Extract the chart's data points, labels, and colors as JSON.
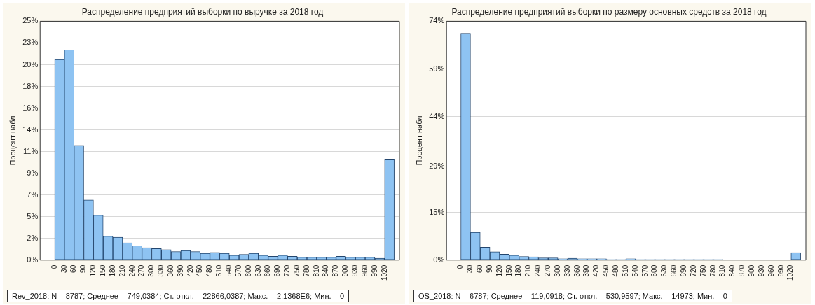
{
  "chart_data": [
    {
      "type": "histogram",
      "title": "Распределение предприятий выборки по выручке за 2018 год",
      "ylabel": "Процент набл",
      "color": "#8ec3f2",
      "bins": [
        0,
        30,
        60,
        90,
        120,
        150,
        180,
        210,
        240,
        270,
        300,
        330,
        360,
        390,
        420,
        450,
        480,
        510,
        540,
        570,
        600,
        630,
        660,
        690,
        720,
        750,
        780,
        810,
        840,
        870,
        900,
        930,
        960,
        990,
        1020,
        1050
      ],
      "values": [
        21.0,
        22.0,
        12.0,
        6.3,
        4.7,
        2.5,
        2.4,
        1.8,
        1.5,
        1.3,
        1.2,
        1.1,
        0.9,
        1.0,
        0.9,
        0.7,
        0.8,
        0.7,
        0.5,
        0.6,
        0.7,
        0.5,
        0.4,
        0.5,
        0.4,
        0.3,
        0.3,
        0.3,
        0.3,
        0.4,
        0.3,
        0.3,
        0.3,
        0.2,
        10.5
      ],
      "xlim": [
        -45,
        1066
      ],
      "xticks": [
        0,
        30,
        60,
        90,
        120,
        150,
        180,
        210,
        240,
        270,
        300,
        330,
        360,
        390,
        420,
        450,
        480,
        510,
        540,
        570,
        600,
        630,
        660,
        690,
        720,
        750,
        780,
        810,
        840,
        870,
        900,
        930,
        960,
        990,
        1020
      ],
      "ylim": [
        0,
        25
      ],
      "yticks": [
        {
          "value": 0,
          "label": "0%"
        },
        {
          "value": 2.27,
          "label": "2%"
        },
        {
          "value": 4.55,
          "label": "5%"
        },
        {
          "value": 6.82,
          "label": "7%"
        },
        {
          "value": 9.09,
          "label": "9%"
        },
        {
          "value": 11.36,
          "label": "11%"
        },
        {
          "value": 13.64,
          "label": "14%"
        },
        {
          "value": 15.91,
          "label": "16%"
        },
        {
          "value": 18.18,
          "label": "18%"
        },
        {
          "value": 20.45,
          "label": "20%"
        },
        {
          "value": 22.73,
          "label": "23%"
        },
        {
          "value": 25,
          "label": "25%"
        }
      ],
      "grid": "y",
      "annotations": [
        "Rev_2018:   N = 8787; Среднее = 749,0384; Ст. откл. = 22866,0387; Макс. = 2,1368E6; Мин. = 0"
      ]
    },
    {
      "type": "histogram",
      "title": "Распределение предприятий выборки по размеру основных средств за 2018 год",
      "ylabel": "Процент набл",
      "color": "#8ec3f2",
      "bins": [
        0,
        30,
        60,
        90,
        120,
        150,
        180,
        210,
        240,
        270,
        300,
        330,
        360,
        390,
        420,
        450,
        480,
        510,
        540,
        570,
        600,
        630,
        660,
        690,
        720,
        750,
        780,
        810,
        840,
        870,
        900,
        930,
        960,
        990,
        1020,
        1050
      ],
      "values": [
        70.3,
        8.6,
        4.0,
        2.6,
        1.8,
        1.5,
        1.1,
        1.0,
        0.7,
        0.7,
        0.4,
        0.6,
        0.4,
        0.4,
        0.4,
        0.2,
        0.2,
        0.4,
        0.2,
        0.2,
        0.2,
        0.2,
        0.2,
        0.2,
        0.2,
        0.2,
        0.2,
        0,
        0,
        0,
        0,
        0,
        0,
        0,
        2.3
      ],
      "xlim": [
        -44,
        1066
      ],
      "xticks": [
        0,
        30,
        60,
        90,
        120,
        150,
        180,
        210,
        240,
        270,
        300,
        330,
        360,
        390,
        420,
        450,
        480,
        510,
        540,
        570,
        600,
        630,
        660,
        690,
        720,
        750,
        780,
        810,
        840,
        870,
        900,
        930,
        960,
        990,
        1020
      ],
      "ylim": [
        0,
        74
      ],
      "yticks": [
        {
          "value": 0,
          "label": "0%"
        },
        {
          "value": 14.8,
          "label": "15%"
        },
        {
          "value": 29,
          "label": "29%"
        },
        {
          "value": 44.4,
          "label": "44%"
        },
        {
          "value": 59.2,
          "label": "59%"
        },
        {
          "value": 74,
          "label": "74%"
        }
      ],
      "grid": "y",
      "annotations": [
        "OS_2018:   N = 6787; Среднее = 119,0918; Ст. откл. = 530,9597; Макс. = 14973; Мин. = 0"
      ]
    }
  ]
}
